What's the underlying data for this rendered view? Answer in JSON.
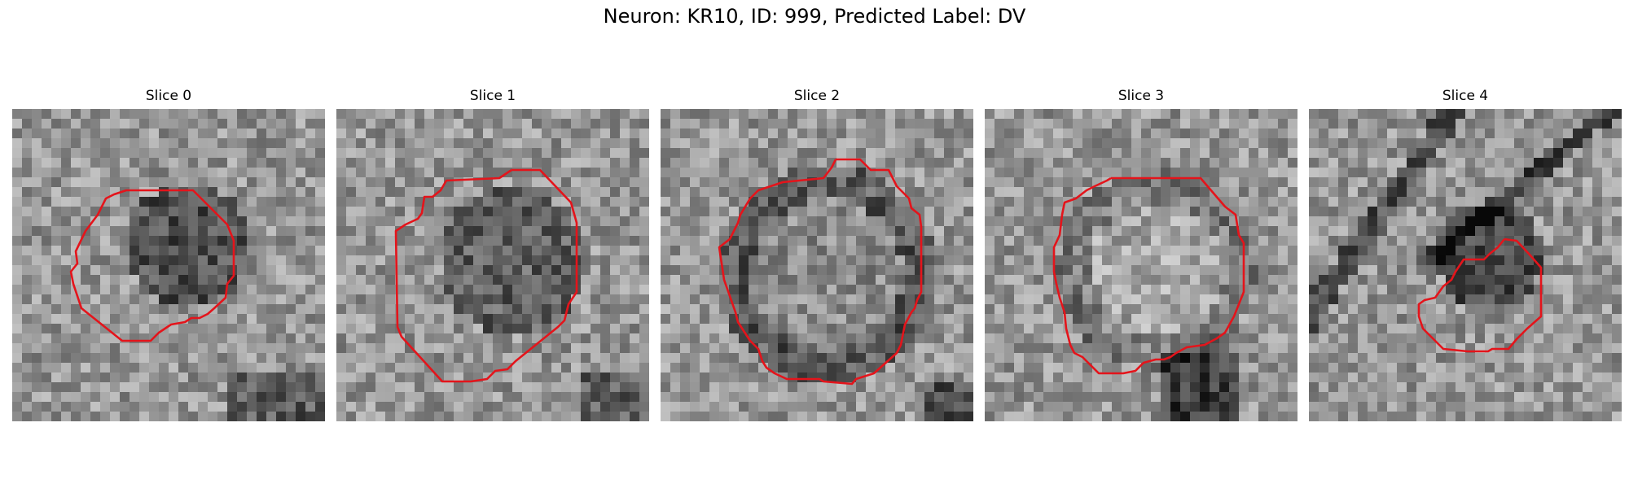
{
  "figure": {
    "title": "Neuron: KR10, ID: 999, Predicted Label: DV"
  },
  "panels": [
    {
      "title": "Slice 0",
      "contour_color": "#e4141b"
    },
    {
      "title": "Slice 1",
      "contour_color": "#e4141b"
    },
    {
      "title": "Slice 2",
      "contour_color": "#e4141b"
    },
    {
      "title": "Slice 3",
      "contour_color": "#e4141b"
    },
    {
      "title": "Slice 4",
      "contour_color": "#e4141b"
    }
  ]
}
